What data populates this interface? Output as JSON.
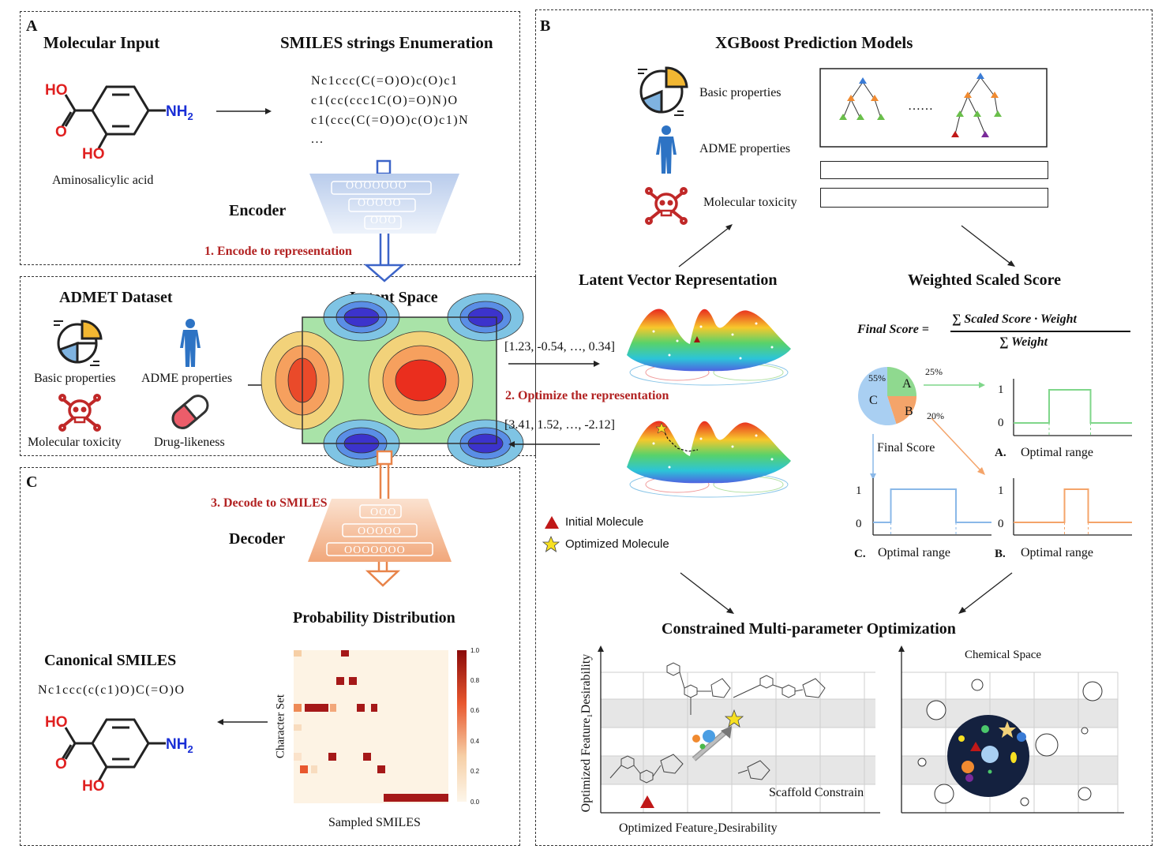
{
  "panel_a": {
    "letter": "A",
    "title_input": "Molecular Input",
    "title_enum": "SMILES strings Enumeration",
    "molecule_name": "Aminosalicylic acid",
    "atoms": {
      "ho": "HO",
      "o": "O",
      "ho2": "HO",
      "nh2": "NH",
      "sub": "2"
    },
    "smiles": [
      "Nc1ccc(C(=O)O)c(O)c1",
      "c1(cc(ccc1C(O)=O)N)O",
      "c1(ccc(C(=O)O)c(O)c1)N",
      "..."
    ],
    "encoder_label": "Encoder",
    "encoder_rows": [
      "OOOOOOO",
      "OOOOO",
      "OOO"
    ],
    "step1": "1. Encode to representation"
  },
  "dataset": {
    "title": "ADMET Dataset",
    "basic": "Basic properties",
    "adme": "ADME properties",
    "toxicity": "Molecular toxicity",
    "drug": "Drug-likeness"
  },
  "latent": {
    "title": "Latent Space",
    "vec1": "[1.23, -0.54, …, 0.34]",
    "vec2": "[3.41, 1.52, …, -2.12]",
    "step2": "2. Optimize the representation",
    "lvr_title": "Latent Vector Representation",
    "legend_initial": "Initial Molecule",
    "legend_optimized": "Optimized Molecule"
  },
  "panel_b": {
    "letter": "B",
    "title": "XGBoost Prediction Models",
    "basic": "Basic properties",
    "adme": "ADME properties",
    "toxicity": "Molecular toxicity",
    "dots": "……",
    "wss_title": "Weighted Scaled Score",
    "formula_lhs": "Final Score =",
    "formula_num": "∑ Scaled Score · Weight",
    "formula_den": "∑ Weight",
    "pie": {
      "a": "A",
      "b": "B",
      "c": "C",
      "pa": "25%",
      "pb": "20%",
      "pc": "55%",
      "values": [
        25,
        20,
        55
      ]
    },
    "final_score": "Final Score",
    "charts": [
      {
        "id": "A.",
        "label": "Optimal range",
        "color": "#7fd68a",
        "y1": "1",
        "y0": "0",
        "range": [
          0.3,
          0.65
        ]
      },
      {
        "id": "C.",
        "label": "Optimal range",
        "color": "#8ab8e8",
        "y1": "1",
        "y0": "0",
        "range": [
          0.15,
          0.7
        ]
      },
      {
        "id": "B.",
        "label": "Optimal range",
        "color": "#f4a46a",
        "y1": "1",
        "y0": "0",
        "range": [
          0.43,
          0.63
        ]
      }
    ]
  },
  "panel_c": {
    "letter": "C",
    "step3": "3. Decode to SMILES",
    "decoder_label": "Decoder",
    "decoder_rows": [
      "OOO",
      "OOOOO",
      "OOOOOOO"
    ],
    "prob_title": "Probability Distribution",
    "canon_title": "Canonical SMILES",
    "canon_smiles": "Nc1ccc(c(c1)O)C(=O)O",
    "ylabel": "Character Set",
    "xlabel": "Sampled SMILES",
    "colorbar_ticks": [
      "1.0",
      "0.8",
      "0.6",
      "0.4",
      "0.2",
      "0.0"
    ]
  },
  "cmpo": {
    "title": "Constrained Multi-parameter Optimization",
    "ylabel": "Optimized Feature₁Desirability",
    "xlabel": "Optimized Feature₂Desirability",
    "scaffold": "Scaffold Constrain",
    "chem_space": "Chemical Space"
  }
}
